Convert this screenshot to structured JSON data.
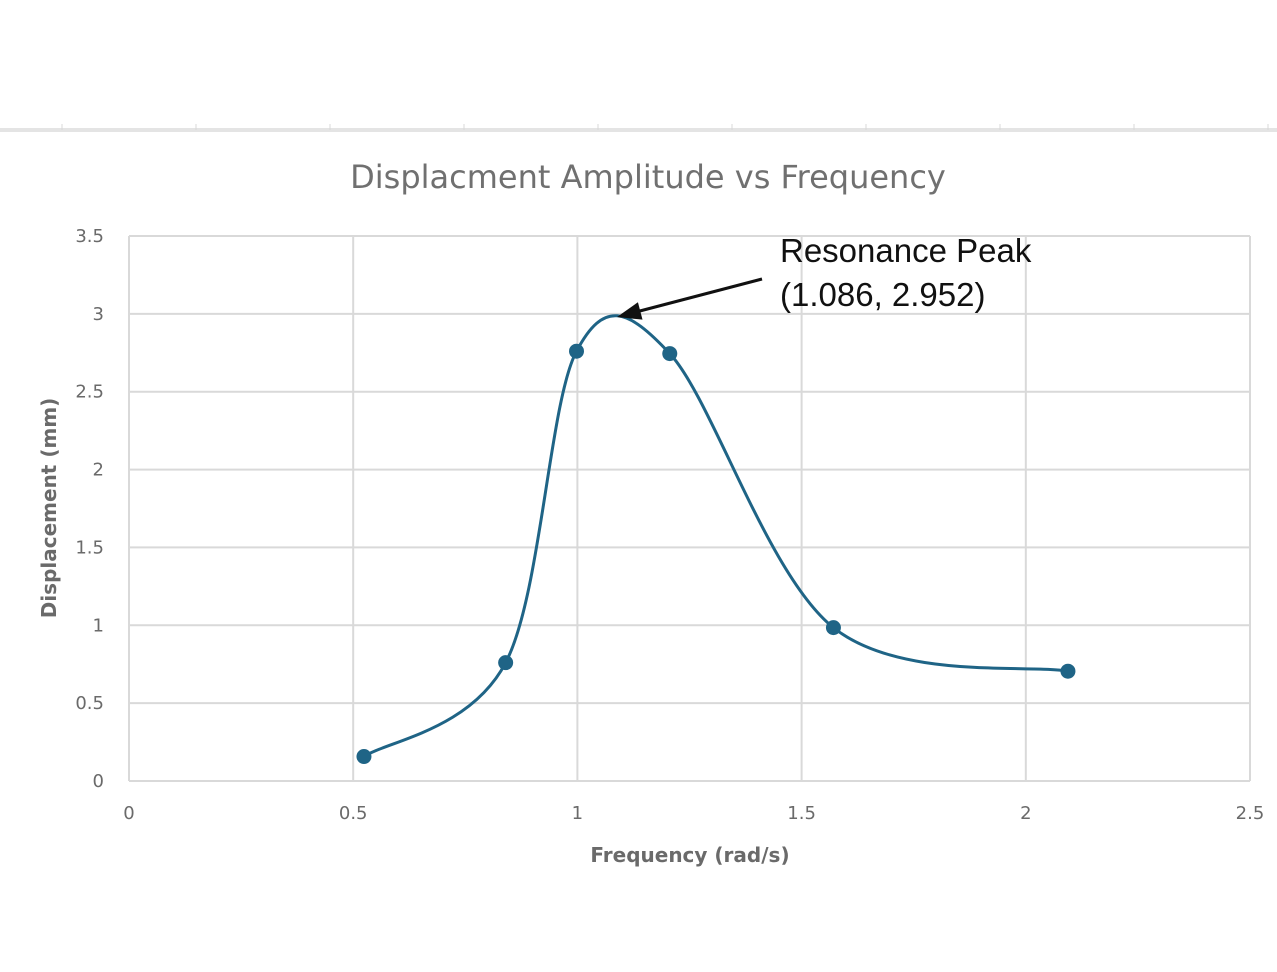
{
  "chart_data": {
    "type": "scatter",
    "title": "Displacment Amplitude vs Frequency",
    "xlabel": "Frequency (rad/s)",
    "ylabel": "Displacement (mm)",
    "xlim": [
      0,
      2.5
    ],
    "ylim": [
      0,
      3.5
    ],
    "xticks": [
      "0",
      "0.5",
      "1",
      "1.5",
      "2",
      "2.5"
    ],
    "yticks": [
      "0",
      "0.5",
      "1",
      "1.5",
      "2",
      "2.5",
      "3",
      "3.5"
    ],
    "grid": true,
    "smooth_line": true,
    "series": [
      {
        "x": [
          0.524,
          0.84,
          0.998,
          1.206,
          1.571,
          2.094
        ],
        "y": [
          0.157,
          0.76,
          2.76,
          2.745,
          0.985,
          0.705
        ],
        "color": "#1f6486"
      }
    ],
    "annotation": {
      "line1": "Resonance Peak",
      "line2": "(1.086, 2.952)",
      "x": 1.086,
      "y": 2.952
    }
  }
}
